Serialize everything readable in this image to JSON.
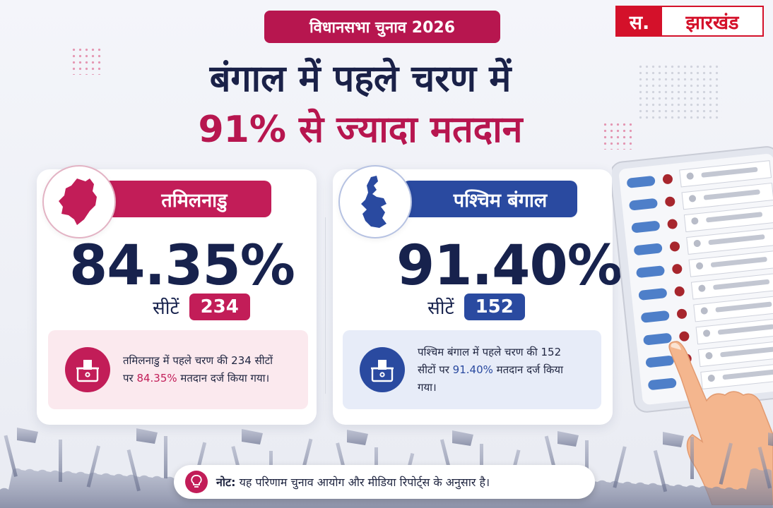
{
  "tag": "विधानसभा चुनाव 2026",
  "logo": {
    "part1": "स.",
    "part2": "झारखंड"
  },
  "headline": {
    "line1": "बंगाल में पहले चरण में",
    "line2": "91% से ज्यादा मतदान"
  },
  "cards": [
    {
      "state": "तमिलनाडु",
      "percent": "84.35%",
      "seats_label": "सीटें",
      "seats": "234",
      "info_pre": "तमिलनाडु में पहले चरण की 234 सीटों पर ",
      "info_highlight": "84.35%",
      "info_post": " मतदान दर्ज किया गया।",
      "accent": "#c21d58"
    },
    {
      "state": "पश्चिम बंगाल",
      "percent": "91.40%",
      "seats_label": "सीटें",
      "seats": "152",
      "info_pre": "पश्चिम बंगाल में पहले चरण की 152 सीटों पर ",
      "info_highlight": "91.40%",
      "info_post": " मतदान दर्ज किया गया।",
      "accent": "#2a4aa0"
    }
  ],
  "note": {
    "label": "नोट:",
    "text": " यह परिणाम चुनाव आयोग और मीडिया रिपोर्ट्स के अनुसार है।"
  },
  "icons": [
    "tamilnadu-map-icon",
    "west-bengal-map-icon",
    "ballot-box-icon",
    "lightbulb-icon",
    "evm-machine",
    "hand-pressing-button",
    "crowd-silhouette"
  ]
}
